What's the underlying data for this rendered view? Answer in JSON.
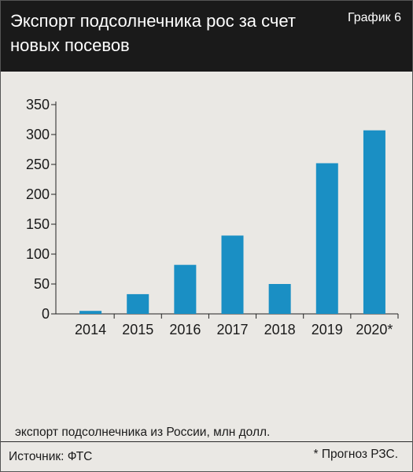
{
  "header": {
    "title": "Экспорт подсолнечника рос за счет новых посевов",
    "label": "График 6"
  },
  "caption": "экспорт подсолнечника из России, млн долл.",
  "note": "* Прогноз РЗС.",
  "source": "Источник: ФТС",
  "colors": {
    "bar": "#1a8fc4",
    "header_bg": "#1a1a1a",
    "panel_bg": "#eae8e4"
  },
  "chart_data": {
    "type": "bar",
    "categories": [
      "2014",
      "2015",
      "2016",
      "2017",
      "2018",
      "2019",
      "2020*"
    ],
    "values": [
      5,
      33,
      82,
      131,
      50,
      252,
      307
    ],
    "title": "",
    "xlabel": "",
    "ylabel": "",
    "ylim": [
      0,
      350
    ],
    "yticks": [
      0,
      50,
      100,
      150,
      200,
      250,
      300,
      350
    ],
    "grid": false,
    "legend": "none"
  }
}
